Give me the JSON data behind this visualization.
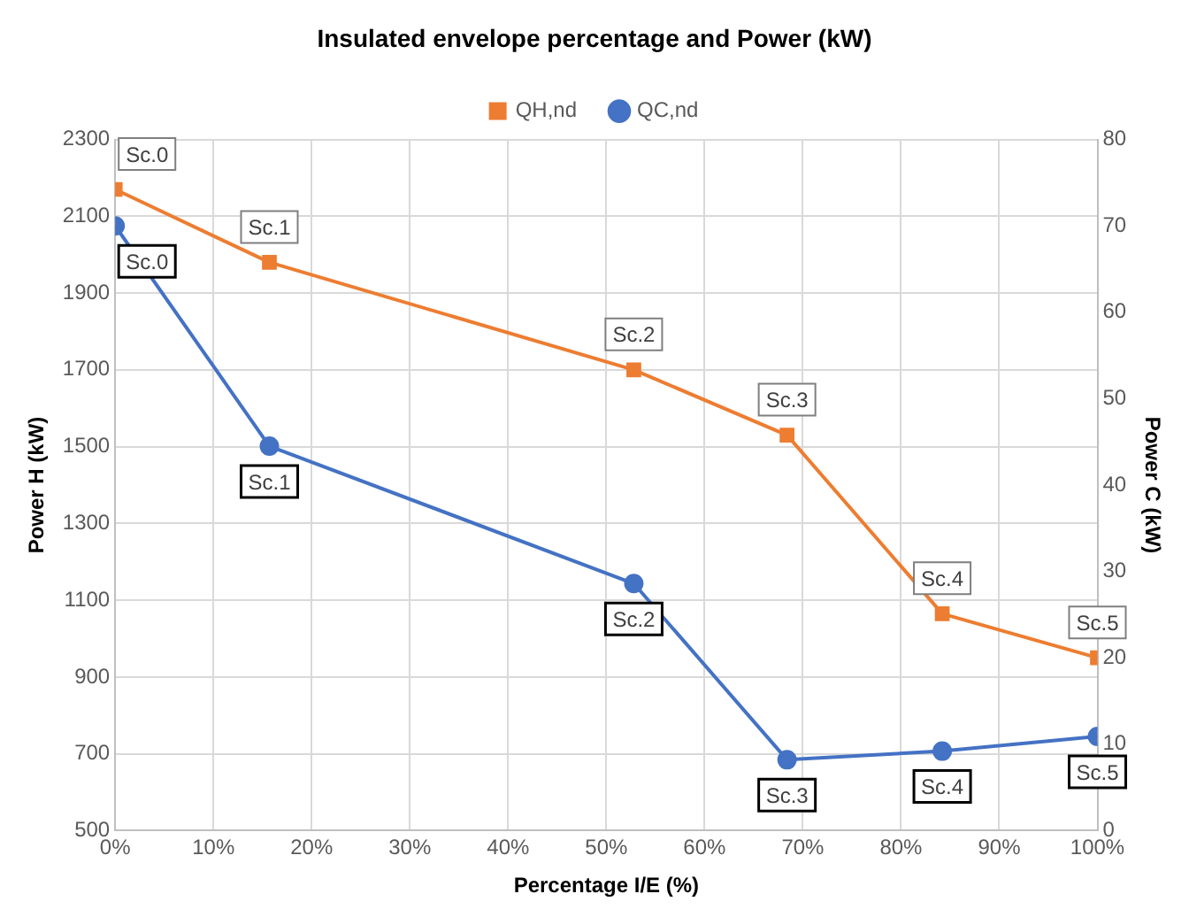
{
  "chart_data": {
    "type": "line",
    "title": "Insulated envelope percentage and Power (kW)",
    "xlabel": "Percentage I/E (%)",
    "ylabel": "Power H (kW)",
    "y2label": "Power C (kW)",
    "x": [
      0,
      15.7,
      52.8,
      68.4,
      84.2,
      100
    ],
    "series": [
      {
        "name": "QH,nd",
        "color": "#ed7d31",
        "marker": "square",
        "values": [
          2170,
          1980,
          1700,
          1530,
          1065,
          950
        ],
        "value_labels": [
          "Sc.0",
          "Sc.1",
          "Sc.2",
          "Sc.3",
          "Sc.4",
          "Sc.5"
        ]
      },
      {
        "name": "QC,nd",
        "color": "#4472c4",
        "marker": "circle",
        "axis": "y2",
        "values": [
          70,
          44.5,
          28.6,
          8.2,
          9.2,
          10.9
        ],
        "value_labels": [
          "Sc.0",
          "Sc.1",
          "Sc.2",
          "Sc.3",
          "Sc.4",
          "Sc.5"
        ]
      }
    ],
    "xlim": [
      0,
      100
    ],
    "xticks": [
      {
        "value": 0,
        "label": "0%"
      },
      {
        "value": 10,
        "label": "10%"
      },
      {
        "value": 20,
        "label": "20%"
      },
      {
        "value": 30,
        "label": "30%"
      },
      {
        "value": 40,
        "label": "40%"
      },
      {
        "value": 50,
        "label": "50%"
      },
      {
        "value": 60,
        "label": "60%"
      },
      {
        "value": 70,
        "label": "70%"
      },
      {
        "value": 80,
        "label": "80%"
      },
      {
        "value": 90,
        "label": "90%"
      },
      {
        "value": 100,
        "label": "100%"
      }
    ],
    "ylim": [
      500,
      2300
    ],
    "yticks": [
      500,
      700,
      900,
      1100,
      1300,
      1500,
      1700,
      1900,
      2100,
      2300
    ],
    "y2lim": [
      0,
      80
    ],
    "y2ticks": [
      0,
      10,
      20,
      30,
      40,
      50,
      60,
      70,
      80
    ],
    "grid": true,
    "legend": "top",
    "line_style": "solid"
  }
}
